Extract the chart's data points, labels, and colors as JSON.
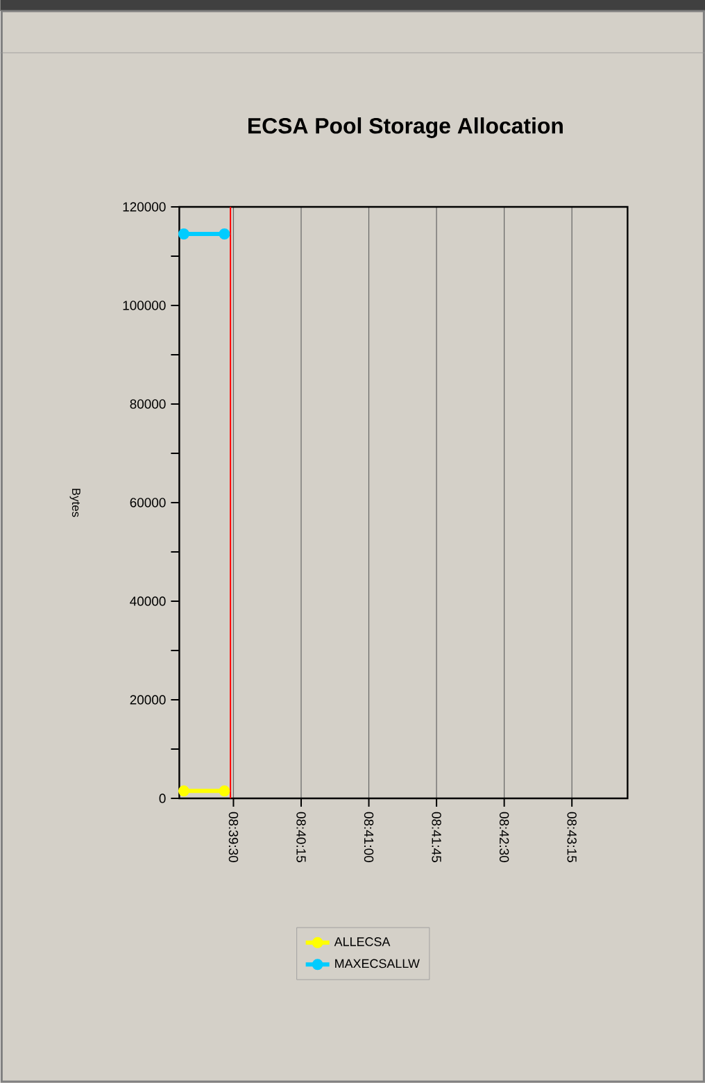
{
  "chart_data": {
    "type": "line",
    "title": "ECSA Pool Storage Allocation",
    "ylabel": "Bytes",
    "x": [
      8.649166,
      8.656666
    ],
    "series": [
      {
        "name": "ALLECSA",
        "color": "#ffff00",
        "values": [
          1500,
          1500
        ]
      },
      {
        "name": "MAXECSALLW",
        "color": "#00ccff",
        "values": [
          114500,
          114500
        ]
      }
    ],
    "xlim": [
      8.648333,
      8.731111
    ],
    "xticks": [
      {
        "value": 8.658333,
        "label": "08:39:30"
      },
      {
        "value": 8.670833,
        "label": "08:40:15"
      },
      {
        "value": 8.683333,
        "label": "08:41:00"
      },
      {
        "value": 8.695833,
        "label": "08:41:45"
      },
      {
        "value": 8.708333,
        "label": "08:42:30"
      },
      {
        "value": 8.720833,
        "label": "08:43:15"
      }
    ],
    "ylim": [
      0,
      120000
    ],
    "yticks": [
      0,
      {
        "value": 10000,
        "label": null
      },
      20000,
      {
        "value": 30000,
        "label": null
      },
      40000,
      {
        "value": 50000,
        "label": null
      },
      60000,
      {
        "value": 70000,
        "label": null
      },
      80000,
      {
        "value": 90000,
        "label": null
      },
      100000,
      {
        "value": 110000,
        "label": null
      },
      120000
    ],
    "ref_lines": [
      {
        "axis": "x",
        "value": 8.657777,
        "color": "#ff0000"
      }
    ],
    "grid": "x",
    "legend": "bottom",
    "marker": "circle",
    "line_style": "solid"
  }
}
